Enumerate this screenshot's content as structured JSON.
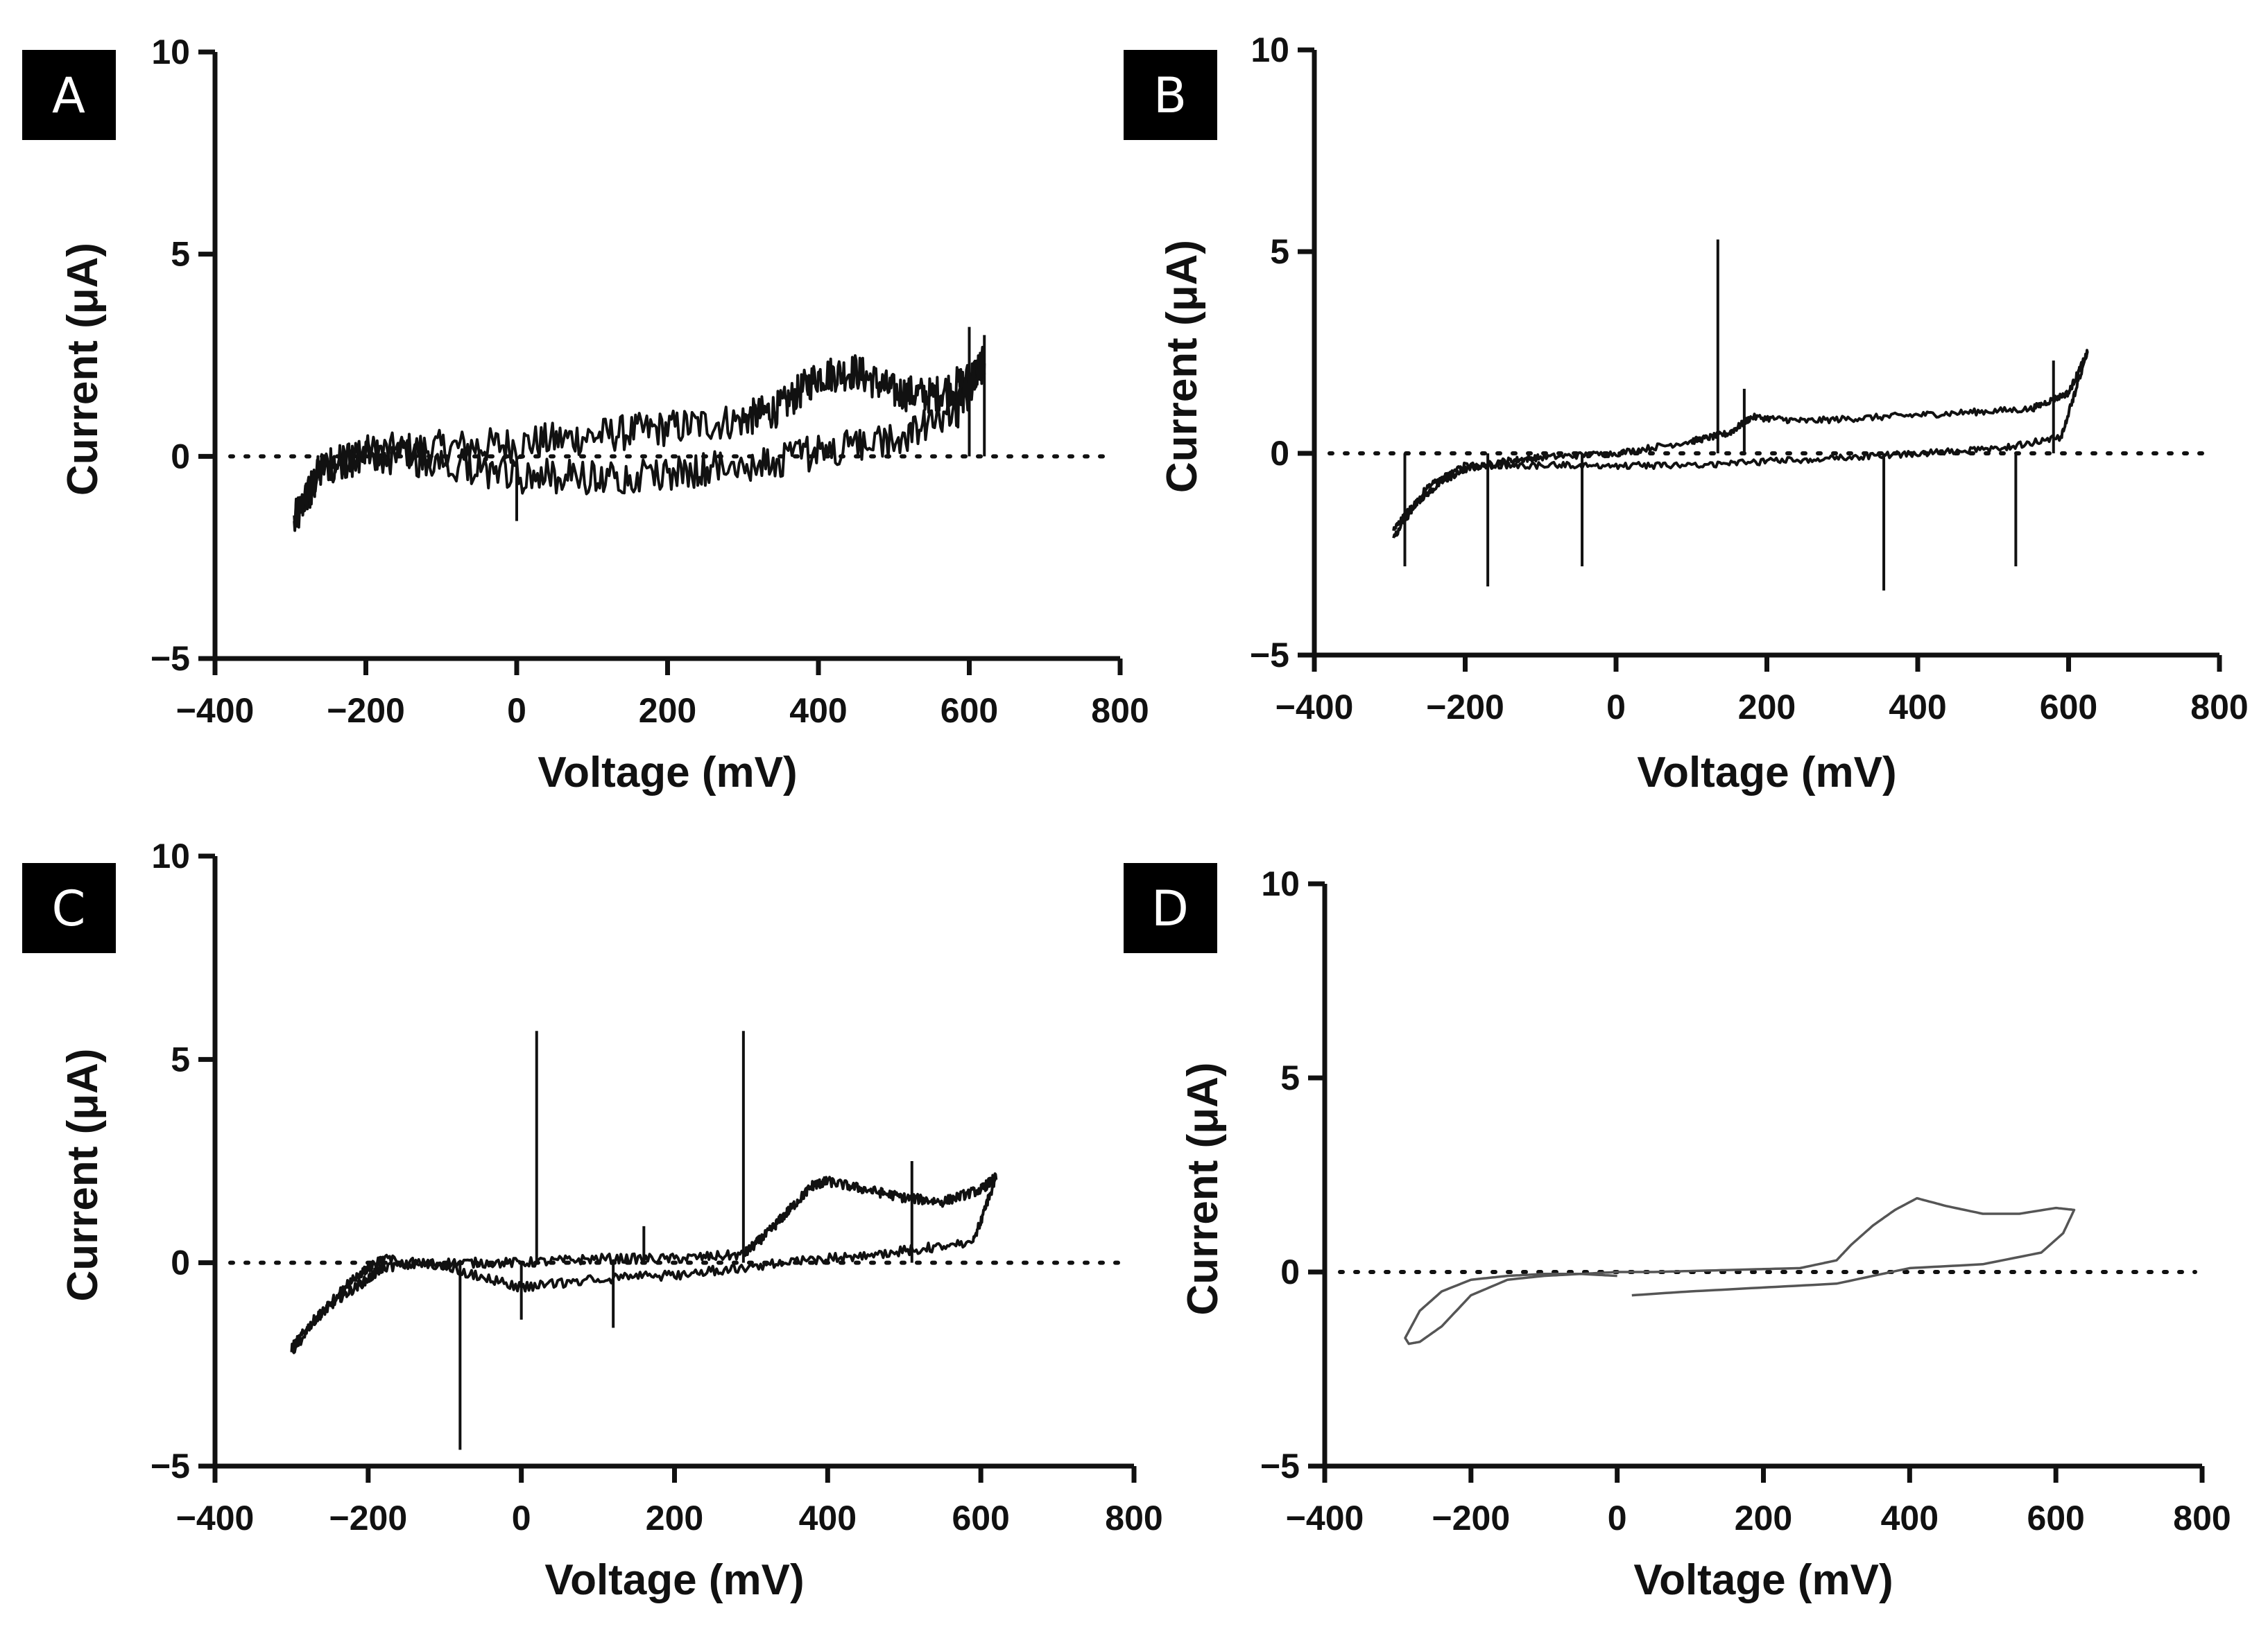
{
  "chart_data": [
    {
      "panel": "A",
      "type": "line",
      "xlabel": "Voltage (mV)",
      "ylabel": "Current (μA)",
      "xlim": [
        -400,
        800
      ],
      "ylim": [
        -5,
        10
      ],
      "xticks": [
        -400,
        -200,
        0,
        200,
        400,
        600,
        800
      ],
      "yticks": [
        -5,
        0,
        5,
        10
      ],
      "zero_line": "dotted",
      "noise": 0.45,
      "series": [
        {
          "x": [
            -295,
            -260,
            -200,
            -100,
            0,
            100,
            200,
            300,
            350,
            400,
            450,
            500,
            550,
            600,
            620
          ],
          "y": [
            -1.6,
            -0.3,
            0.1,
            0.2,
            0.3,
            0.5,
            0.7,
            0.9,
            1.2,
            2.0,
            2.1,
            1.6,
            1.5,
            1.9,
            2.3
          ]
        },
        {
          "x": [
            620,
            580,
            500,
            400,
            300,
            200,
            100,
            0,
            -100,
            -200,
            -260,
            -295
          ],
          "y": [
            2.3,
            1.0,
            0.4,
            0.1,
            -0.2,
            -0.4,
            -0.5,
            -0.5,
            -0.1,
            0.0,
            -0.3,
            -1.6
          ]
        }
      ],
      "spikes": [
        [
          0,
          -1.6
        ],
        [
          620,
          3.0
        ],
        [
          600,
          3.2
        ]
      ]
    },
    {
      "panel": "B",
      "type": "line",
      "xlabel": "Voltage (mV)",
      "ylabel": "Current (μA)",
      "xlim": [
        -400,
        800
      ],
      "ylim": [
        -5,
        10
      ],
      "xticks": [
        -400,
        -200,
        0,
        200,
        400,
        600,
        800
      ],
      "yticks": [
        -5,
        0,
        5,
        10
      ],
      "zero_line": "dotted",
      "noise": 0.08,
      "series": [
        {
          "x": [
            -295,
            -270,
            -230,
            -200,
            -150,
            -100,
            0,
            100,
            150,
            180,
            250,
            350,
            450,
            550,
            600,
            625
          ],
          "y": [
            -1.9,
            -1.3,
            -0.7,
            -0.4,
            -0.2,
            -0.1,
            0.0,
            0.3,
            0.5,
            0.9,
            0.8,
            0.9,
            1.0,
            1.1,
            1.5,
            2.5
          ]
        },
        {
          "x": [
            625,
            590,
            500,
            400,
            300,
            200,
            100,
            0,
            -100,
            -200,
            -250,
            -295
          ],
          "y": [
            2.5,
            0.4,
            0.1,
            0.0,
            -0.1,
            -0.2,
            -0.3,
            -0.3,
            -0.3,
            -0.3,
            -0.8,
            -2.1
          ]
        }
      ],
      "spikes": [
        [
          135,
          5.3
        ],
        [
          -170,
          -3.3
        ],
        [
          -45,
          -2.8
        ],
        [
          355,
          -3.4
        ],
        [
          530,
          -2.8
        ],
        [
          -280,
          -2.8
        ],
        [
          170,
          1.6
        ],
        [
          580,
          2.3
        ]
      ]
    },
    {
      "panel": "C",
      "type": "line",
      "xlabel": "Voltage (mV)",
      "ylabel": "Current (μA)",
      "xlim": [
        -400,
        800
      ],
      "ylim": [
        -5,
        10
      ],
      "xticks": [
        -400,
        -200,
        0,
        200,
        400,
        600,
        800
      ],
      "yticks": [
        -5,
        0,
        5,
        10
      ],
      "zero_line": "dotted",
      "noise": 0.12,
      "series": [
        {
          "x": [
            -300,
            -270,
            -240,
            -200,
            -180,
            -100,
            0,
            100,
            200,
            290,
            320,
            350,
            380,
            400,
            450,
            500,
            550,
            600,
            620
          ],
          "y": [
            -2.1,
            -1.4,
            -0.9,
            -0.4,
            -0.1,
            0.0,
            0.0,
            0.1,
            0.1,
            0.2,
            0.7,
            1.3,
            1.9,
            2.0,
            1.8,
            1.6,
            1.5,
            1.8,
            2.1
          ]
        },
        {
          "x": [
            620,
            590,
            500,
            400,
            300,
            200,
            100,
            0,
            -100,
            -180,
            -220,
            -260,
            -300
          ],
          "y": [
            2.1,
            0.5,
            0.3,
            0.1,
            -0.1,
            -0.3,
            -0.4,
            -0.6,
            -0.1,
            0.1,
            -0.4,
            -1.2,
            -2.2
          ]
        }
      ],
      "spikes": [
        [
          20,
          5.7
        ],
        [
          290,
          5.7
        ],
        [
          -80,
          -4.6
        ],
        [
          120,
          -1.6
        ],
        [
          0,
          -1.4
        ],
        [
          160,
          0.9
        ],
        [
          510,
          2.5
        ]
      ]
    },
    {
      "panel": "D",
      "type": "line",
      "xlabel": "Voltage (mV)",
      "ylabel": "Current (μA)",
      "xlim": [
        -400,
        800
      ],
      "ylim": [
        -5,
        10
      ],
      "xticks": [
        -400,
        -200,
        0,
        200,
        400,
        600,
        800
      ],
      "yticks": [
        -5,
        0,
        5,
        10
      ],
      "zero_line": "dotted",
      "noise": 0,
      "series": [
        {
          "x": [
            20,
            100,
            200,
            300,
            400,
            500,
            580,
            610,
            625,
            600,
            550,
            500,
            450,
            410,
            380,
            350,
            320,
            300,
            250,
            150,
            50,
            0,
            -50,
            -100,
            -150,
            -200,
            -240,
            -270,
            -285,
            -290,
            -270,
            -240,
            -200,
            -150,
            -100,
            -50,
            0
          ],
          "y": [
            -0.6,
            -0.5,
            -0.4,
            -0.3,
            0.1,
            0.2,
            0.5,
            1.0,
            1.6,
            1.65,
            1.5,
            1.5,
            1.7,
            1.9,
            1.6,
            1.2,
            0.7,
            0.3,
            0.1,
            0.05,
            0.0,
            0.0,
            -0.05,
            -0.1,
            -0.2,
            -0.6,
            -1.4,
            -1.8,
            -1.85,
            -1.7,
            -1.0,
            -0.5,
            -0.2,
            -0.1,
            -0.05,
            -0.05,
            -0.1
          ]
        }
      ],
      "spikes": []
    }
  ]
}
